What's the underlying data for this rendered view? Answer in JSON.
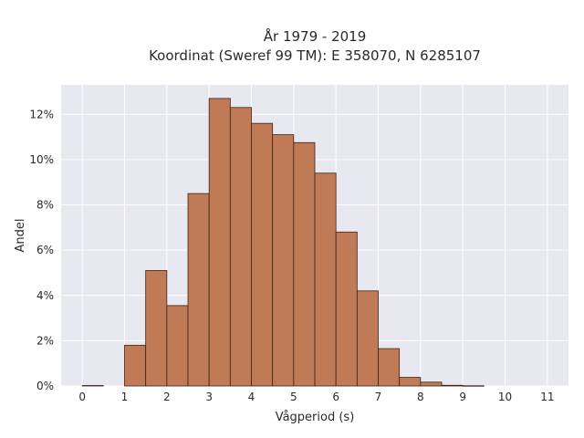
{
  "chart_data": {
    "type": "bar",
    "title_lines": [
      "År 1979 - 2019",
      "Koordinat (Sweref 99 TM): E 358070, N 6285107"
    ],
    "xlabel": "Vågperiod (s)",
    "ylabel": "Andel",
    "xlim": [
      -0.5,
      11.5
    ],
    "ylim": [
      0,
      13.3
    ],
    "x_ticks": [
      0,
      1,
      2,
      3,
      4,
      5,
      6,
      7,
      8,
      9,
      10,
      11
    ],
    "y_ticks": [
      0,
      2,
      4,
      6,
      8,
      10,
      12
    ],
    "y_tick_labels": [
      "0%",
      "2%",
      "4%",
      "6%",
      "8%",
      "10%",
      "12%"
    ],
    "bin_width": 0.5,
    "bins": [
      {
        "start": 0.0,
        "value": 0.02
      },
      {
        "start": 0.5,
        "value": 0.0
      },
      {
        "start": 1.0,
        "value": 1.8
      },
      {
        "start": 1.5,
        "value": 5.1
      },
      {
        "start": 2.0,
        "value": 3.55
      },
      {
        "start": 2.5,
        "value": 8.5
      },
      {
        "start": 3.0,
        "value": 12.7
      },
      {
        "start": 3.5,
        "value": 12.3
      },
      {
        "start": 4.0,
        "value": 11.6
      },
      {
        "start": 4.5,
        "value": 11.1
      },
      {
        "start": 5.0,
        "value": 10.75
      },
      {
        "start": 5.5,
        "value": 9.4
      },
      {
        "start": 6.0,
        "value": 6.8
      },
      {
        "start": 6.5,
        "value": 4.2
      },
      {
        "start": 7.0,
        "value": 1.65
      },
      {
        "start": 7.5,
        "value": 0.38
      },
      {
        "start": 8.0,
        "value": 0.17
      },
      {
        "start": 8.5,
        "value": 0.03
      },
      {
        "start": 9.0,
        "value": 0.01
      }
    ],
    "bar_color": "#c07a55",
    "bar_edge_color": "#3b2418",
    "plot_background": "#e8e8f0",
    "grid": true
  }
}
